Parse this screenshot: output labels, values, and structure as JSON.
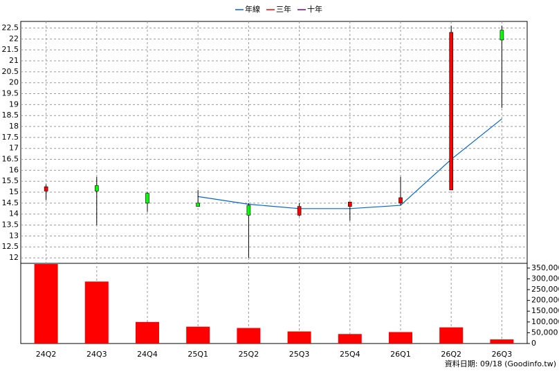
{
  "chart_data": {
    "type": "candlestick",
    "categories": [
      "24Q2",
      "24Q3",
      "24Q4",
      "25Q1",
      "25Q2",
      "25Q3",
      "25Q4",
      "26Q1",
      "26Q2",
      "26Q3"
    ],
    "open": [
      15.05,
      15.3,
      14.95,
      14.5,
      14.4,
      13.95,
      14.35,
      14.5,
      15.1,
      22.4
    ],
    "high": [
      15.35,
      15.7,
      15.0,
      15.1,
      14.5,
      14.5,
      14.55,
      15.7,
      22.6,
      22.6
    ],
    "low": [
      14.65,
      13.5,
      14.1,
      14.35,
      12.0,
      13.9,
      13.7,
      14.4,
      15.1,
      18.85
    ],
    "close": [
      15.25,
      15.05,
      14.5,
      14.35,
      13.95,
      14.35,
      14.55,
      14.75,
      22.3,
      21.95
    ],
    "up_color": "#ff0000",
    "down_color": "#00ff00",
    "series": [
      {
        "name": "年線",
        "color": "#0066cc",
        "values": [
          null,
          null,
          null,
          14.8,
          14.45,
          14.25,
          14.25,
          14.4,
          16.5,
          18.35
        ]
      },
      {
        "name": "三年",
        "color": "#ff0000",
        "values": [
          null,
          null,
          null,
          null,
          null,
          null,
          null,
          null,
          null,
          null
        ]
      },
      {
        "name": "十年",
        "color": "#800080",
        "values": [
          null,
          null,
          null,
          null,
          null,
          null,
          null,
          null,
          null,
          null
        ]
      }
    ],
    "volume": {
      "color": "#ff0000",
      "values": [
        368750,
        287500,
        100000,
        78000,
        72000,
        56000,
        44000,
        53000,
        75000,
        19000
      ]
    },
    "ylim": [
      11.75,
      22.8
    ],
    "yticks": [
      12,
      12.5,
      13,
      13.5,
      14,
      14.5,
      15,
      15.5,
      16,
      16.5,
      17,
      17.5,
      18,
      18.5,
      19,
      19.5,
      20,
      20.5,
      21,
      21.5,
      22,
      22.5
    ],
    "y2lim": [
      0,
      372000
    ],
    "y2ticks": [
      0,
      {
        "value": 50000,
        "label": "50,000"
      },
      {
        "value": 100000,
        "label": "100,000"
      },
      {
        "value": 150000,
        "label": "150,000"
      },
      {
        "value": 200000,
        "label": "200,000"
      },
      {
        "value": 250000,
        "label": "250,000"
      },
      {
        "value": 300000,
        "label": "300,000"
      },
      {
        "value": 350000,
        "label": "350,000"
      }
    ],
    "grid": true,
    "footer": "資料日期: 09/18 (Goodinfo.tw)"
  }
}
